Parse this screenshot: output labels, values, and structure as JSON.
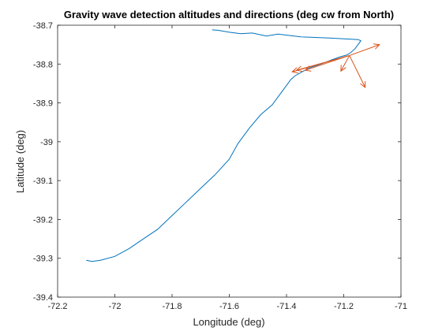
{
  "chart_data": {
    "type": "line",
    "title": "Gravity wave detection altitudes and directions (deg cw from North)",
    "xlabel": "Longitude (deg)",
    "ylabel": "Latitude (deg)",
    "xlim": [
      -72.2,
      -71
    ],
    "ylim": [
      -39.4,
      -38.7
    ],
    "xticks": [
      -72.2,
      -72,
      -71.8,
      -71.6,
      -71.4,
      -71.2,
      -71
    ],
    "xtick_labels": [
      "-72.2",
      "-72",
      "-71.8",
      "-71.6",
      "-71.4",
      "-71.2",
      "-71"
    ],
    "yticks": [
      -38.7,
      -38.8,
      -38.9,
      -39,
      -39.1,
      -39.2,
      -39.3,
      -39.4
    ],
    "ytick_labels": [
      "-38.7",
      "-38.8",
      "-38.9",
      "-39",
      "-39.1",
      "-39.2",
      "-39.3",
      "-39.4"
    ],
    "grid": false,
    "colors": {
      "track": "#0072bd",
      "arrow": "#d95319"
    },
    "track": {
      "x": [
        -72.1,
        -72.08,
        -72.05,
        -72.0,
        -71.95,
        -71.9,
        -71.85,
        -71.8,
        -71.75,
        -71.7,
        -71.65,
        -71.6,
        -71.57,
        -71.53,
        -71.49,
        -71.45,
        -71.43,
        -71.41,
        -71.395,
        -71.385,
        -71.37,
        -71.345,
        -71.32,
        -71.28,
        -71.245,
        -71.215,
        -71.19,
        -71.175,
        -71.16,
        -71.14,
        -71.15,
        -71.25,
        -71.35,
        -71.43,
        -71.47,
        -71.52,
        -71.56,
        -71.6,
        -71.64,
        -71.66
      ],
      "y": [
        -39.305,
        -39.308,
        -39.305,
        -39.295,
        -39.275,
        -39.25,
        -39.225,
        -39.19,
        -39.155,
        -39.12,
        -39.085,
        -39.045,
        -39.005,
        -38.965,
        -38.93,
        -38.905,
        -38.885,
        -38.865,
        -38.85,
        -38.84,
        -38.83,
        -38.82,
        -38.81,
        -38.8,
        -38.79,
        -38.782,
        -38.777,
        -38.77,
        -38.76,
        -38.74,
        -38.737,
        -38.733,
        -38.73,
        -38.723,
        -38.728,
        -38.72,
        -38.722,
        -38.718,
        -38.713,
        -38.712
      ]
    },
    "vectors": [
      {
        "x": -71.18,
        "y": -38.778,
        "dx": 0.105,
        "dy": 0.028
      },
      {
        "x": -71.18,
        "y": -38.778,
        "dx": 0.055,
        "dy": -0.082
      },
      {
        "x": -71.18,
        "y": -38.778,
        "dx": -0.03,
        "dy": -0.04
      },
      {
        "x": -71.18,
        "y": -38.778,
        "dx": -0.155,
        "dy": -0.038
      },
      {
        "x": -71.18,
        "y": -38.778,
        "dx": -0.185,
        "dy": -0.038
      },
      {
        "x": -71.18,
        "y": -38.778,
        "dx": -0.2,
        "dy": -0.042
      }
    ]
  }
}
